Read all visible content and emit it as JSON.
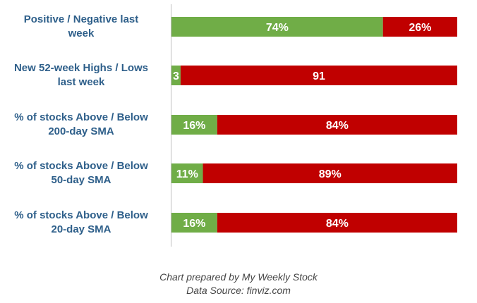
{
  "chart_data": {
    "type": "bar",
    "stacked": true,
    "orientation": "horizontal",
    "categories": [
      [
        "Positive / Negative last",
        "week"
      ],
      [
        "New 52-week Highs / Lows",
        "last week"
      ],
      [
        "% of stocks Above / Below",
        "200-day SMA"
      ],
      [
        "% of stocks Above / Below",
        "50-day SMA"
      ],
      [
        "% of stocks Above / Below",
        "20-day SMA"
      ]
    ],
    "series": [
      {
        "color": "#70ad47",
        "values": [
          74,
          3,
          16,
          11,
          16
        ],
        "labels": [
          "74%",
          "3",
          "16%",
          "11%",
          "16%"
        ]
      },
      {
        "color": "#c00000",
        "values": [
          26,
          91,
          84,
          89,
          84
        ],
        "labels": [
          "26%",
          "91",
          "84%",
          "89%",
          "84%"
        ]
      }
    ],
    "normalized_to_100_percent": true,
    "legend": "none",
    "grid": false
  },
  "footer": {
    "line1": "Chart prepared by My Weekly Stock",
    "line2": "Data Source: finviz.com"
  }
}
